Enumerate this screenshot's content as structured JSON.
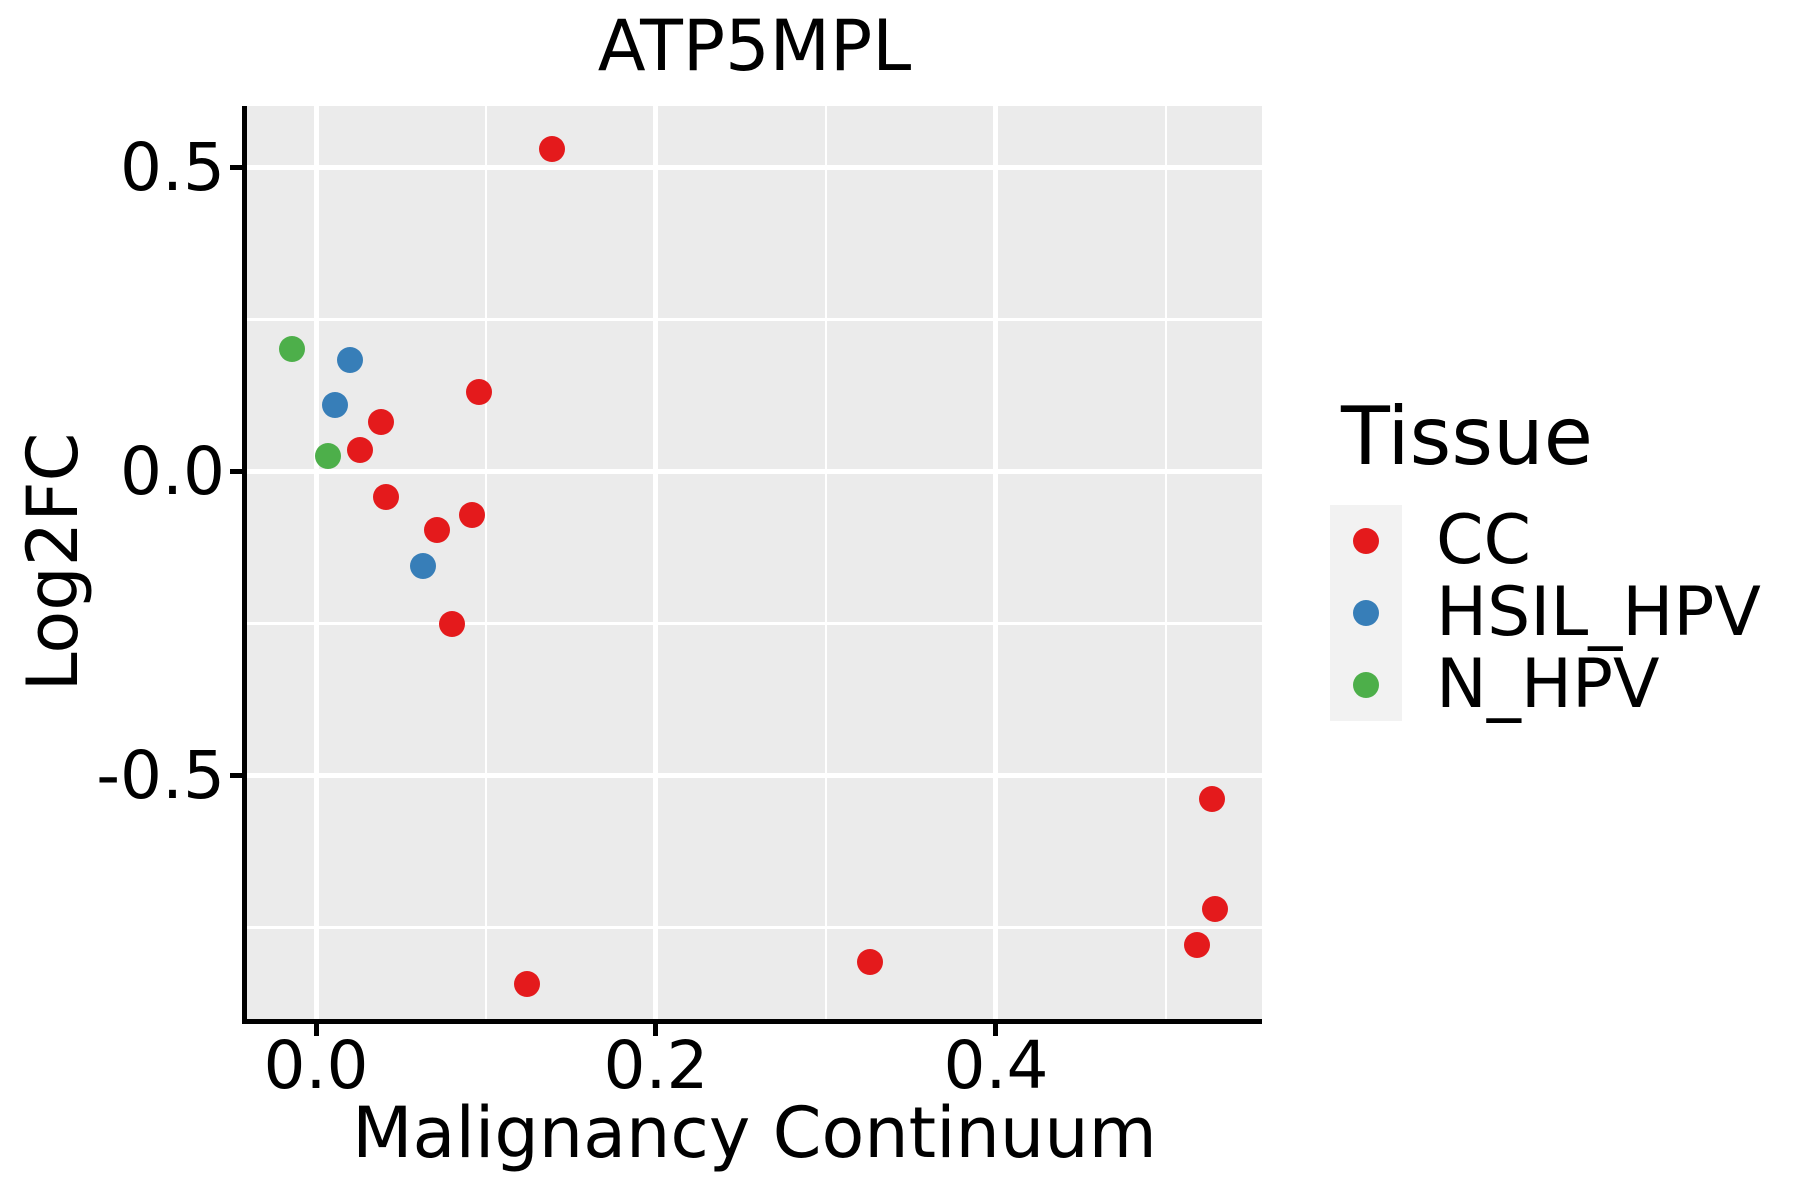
{
  "chart_data": {
    "type": "scatter",
    "title": "ATP5MPL",
    "xlabel": "Malignancy Continuum",
    "ylabel": "Log2FC",
    "legend_title": "Tissue",
    "legend_position": "right",
    "grid": true,
    "xlim": [
      -0.0406,
      0.5565
    ],
    "ylim": [
      -0.9005,
      0.6012
    ],
    "x_ticks": {
      "values": [
        0.0,
        0.2,
        0.4
      ],
      "labels": [
        "0.0",
        "0.2",
        "0.4"
      ]
    },
    "y_ticks": {
      "values": [
        0.5,
        0.0,
        -0.5
      ],
      "labels": [
        "0.5",
        "0.0",
        "-0.5"
      ]
    },
    "x_minor": [
      0.1,
      0.3,
      0.5
    ],
    "y_minor": [
      0.25,
      -0.25,
      -0.75
    ],
    "colors": {
      "panel_bg": "#EBEBEB",
      "grid": "#FFFFFF",
      "legend_key_bg": "#F2F2F2",
      "text": "#000000",
      "axis_line": "#000000"
    },
    "series": [
      {
        "name": "CC",
        "color": "#E41A1C",
        "points": [
          [
            0.139,
            0.53
          ],
          [
            0.096,
            0.13
          ],
          [
            0.038,
            0.082
          ],
          [
            0.026,
            0.035
          ],
          [
            0.041,
            -0.042
          ],
          [
            0.071,
            -0.097
          ],
          [
            0.092,
            -0.071
          ],
          [
            0.08,
            -0.25
          ],
          [
            0.124,
            -0.843
          ],
          [
            0.326,
            -0.806
          ],
          [
            0.527,
            -0.539
          ],
          [
            0.529,
            -0.72
          ],
          [
            0.518,
            -0.778
          ]
        ]
      },
      {
        "name": "HSIL_HPV",
        "color": "#377EB8",
        "points": [
          [
            0.02,
            0.184
          ],
          [
            0.011,
            0.109
          ],
          [
            0.063,
            -0.156
          ]
        ]
      },
      {
        "name": "N_HPV",
        "color": "#4DAF4A",
        "points": [
          [
            -0.014,
            0.202
          ],
          [
            0.007,
            0.025
          ]
        ]
      }
    ]
  }
}
